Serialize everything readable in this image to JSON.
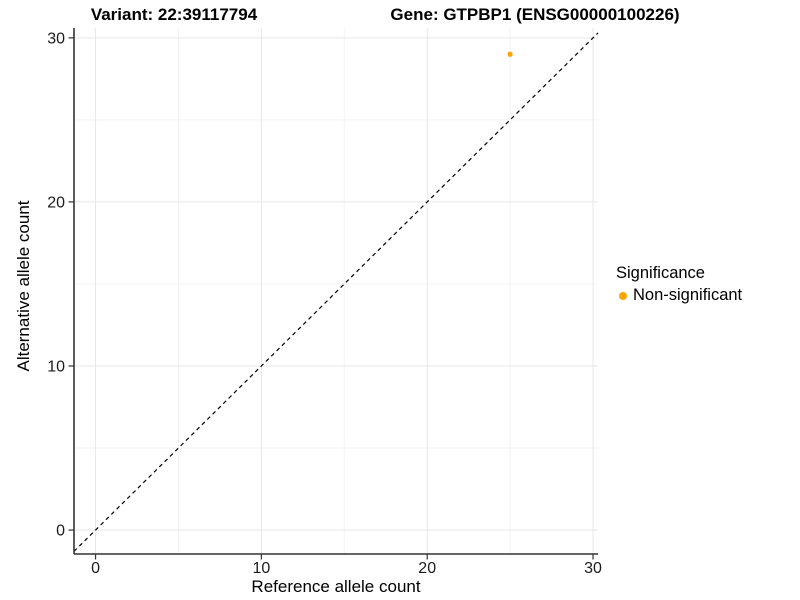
{
  "chart_data": {
    "type": "scatter",
    "title_left": "Variant: 22:39117794",
    "title_right": "Gene: GTPBP1 (ENSG00000100226)",
    "xlabel": "Reference allele count",
    "ylabel": "Alternative allele count",
    "xlim": [
      -1.3,
      30.3
    ],
    "ylim": [
      -1.46,
      30.6
    ],
    "xticks": [
      0,
      10,
      20,
      30
    ],
    "yticks": [
      0,
      10,
      20,
      30
    ],
    "minor_xticks": [
      5,
      15,
      25
    ],
    "minor_yticks": [
      5,
      15,
      25
    ],
    "grid": "on",
    "identity_line": {
      "slope": 1,
      "intercept": 0,
      "style": "dashed",
      "color": "#000000"
    },
    "series": [
      {
        "name": "Non-significant",
        "color": "#FFA500",
        "points": [
          {
            "x": 25,
            "y": 29
          }
        ]
      }
    ],
    "legend": {
      "title": "Significance",
      "position": "right",
      "entries": [
        {
          "label": "Non-significant",
          "color": "#FFA500"
        }
      ]
    },
    "colors": {
      "background": "#ffffff",
      "grid_major": "#e7e7e7",
      "grid_minor": "#f2f2f2",
      "axis_line": "#333333",
      "tick_label": "#1a1a1a",
      "point": "#FFA500"
    }
  }
}
